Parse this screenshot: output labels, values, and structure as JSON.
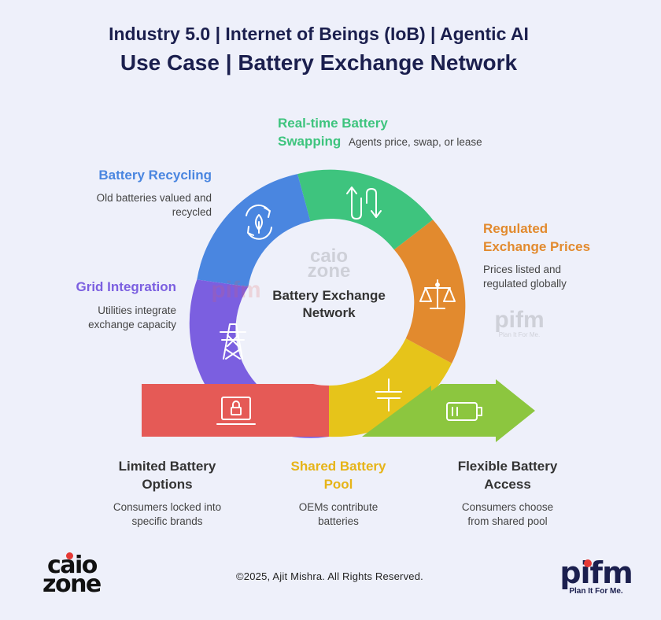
{
  "header": {
    "title_line1": "Industry 5.0 | Internet of Beings (IoB) | Agentic AI",
    "title_line2": "Use Case | Battery Exchange Network"
  },
  "diagram": {
    "center_label": [
      "Battery Exchange",
      "Network"
    ],
    "watermark": {
      "caio_line1": "caio",
      "caio_line2": "zone",
      "pifm": "pifm",
      "pifm_tag": "Plan It For Me."
    },
    "segments": [
      {
        "title": [
          "Real-time Battery",
          "Swapping"
        ],
        "desc": [
          "Agents price, swap, or lease"
        ],
        "color": "#3ec47e",
        "icon": "swap-arrows-icon"
      },
      {
        "title": [
          "Battery Recycling"
        ],
        "desc": [
          "Old batteries valued and",
          "recycled"
        ],
        "color": "#4a86e0",
        "icon": "recycle-icon"
      },
      {
        "title": [
          "Grid Integration"
        ],
        "desc": [
          "Utilities integrate",
          "exchange capacity"
        ],
        "color": "#7b5fe0",
        "icon": "power-tower-icon"
      },
      {
        "title": [
          "Regulated",
          "Exchange Prices"
        ],
        "desc": [
          "Prices listed and",
          "regulated globally"
        ],
        "color": "#e28a2e",
        "icon": "scales-icon"
      },
      {
        "title": [
          "Shared Battery",
          "Pool"
        ],
        "desc": [
          "OEMs contribute",
          "batteries"
        ],
        "color": "#e6c41a",
        "icon": "capacitor-icon"
      },
      {
        "title": [
          "Limited Battery",
          "Options"
        ],
        "desc": [
          "Consumers locked into",
          "specific brands"
        ],
        "color": "#e55a56",
        "icon": "laptop-lock-icon"
      },
      {
        "title": [
          "Flexible Battery",
          "Access"
        ],
        "desc": [
          "Consumers choose",
          "from shared pool"
        ],
        "color": "#8cc63f",
        "icon": "battery-icon"
      }
    ]
  },
  "footer": {
    "copyright": "©2025, Ajit Mishra. All Rights Reserved.",
    "caio_logo": [
      "caio",
      "zone"
    ],
    "pifm_logo": "pifm",
    "pifm_tagline": "Plan It For Me."
  }
}
